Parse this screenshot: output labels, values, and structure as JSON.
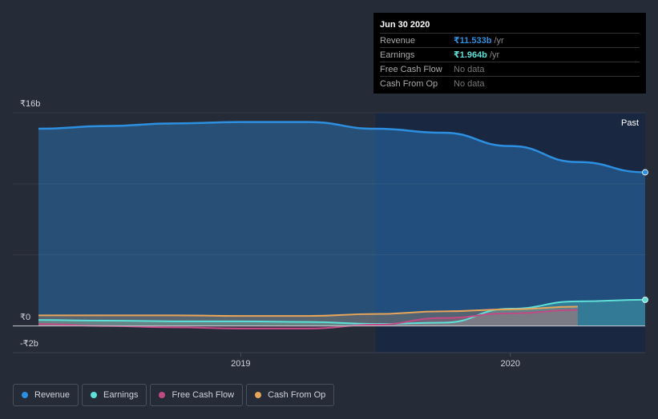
{
  "chart_data": {
    "type": "area",
    "title": "",
    "x_ticks": [
      {
        "label": "2019",
        "value": 2019.0
      },
      {
        "label": "2020",
        "value": 2020.0
      }
    ],
    "x_range": [
      2018.25,
      2020.5
    ],
    "y_ticks": [
      {
        "label": "₹16b",
        "value": 16
      },
      {
        "label": "₹0",
        "value": 0
      },
      {
        "label": "-₹2b",
        "value": -2
      }
    ],
    "ylim": [
      -2,
      16
    ],
    "forecast_label": "Past",
    "highlight_start": 2019.5,
    "series": [
      {
        "name": "Revenue",
        "color": "#2d8fe0",
        "x": [
          2018.25,
          2018.5,
          2018.75,
          2019.0,
          2019.25,
          2019.5,
          2019.75,
          2020.0,
          2020.25,
          2020.5
        ],
        "values": [
          14.8,
          15.0,
          15.2,
          15.3,
          15.3,
          14.8,
          14.5,
          13.5,
          12.3,
          11.533
        ]
      },
      {
        "name": "Earnings",
        "color": "#5ee0d8",
        "x": [
          2018.25,
          2018.5,
          2018.75,
          2019.0,
          2019.25,
          2019.5,
          2019.75,
          2020.0,
          2020.25,
          2020.5
        ],
        "values": [
          0.45,
          0.4,
          0.35,
          0.35,
          0.3,
          0.15,
          0.25,
          1.3,
          1.85,
          1.964
        ]
      },
      {
        "name": "Free Cash Flow",
        "color": "#c04a84",
        "x": [
          2018.25,
          2018.5,
          2018.75,
          2019.0,
          2019.25,
          2019.5,
          2019.75,
          2020.0,
          2020.25
        ],
        "values": [
          0.15,
          0.0,
          -0.1,
          -0.2,
          -0.2,
          0.1,
          0.6,
          0.95,
          1.2
        ]
      },
      {
        "name": "Cash From Op",
        "color": "#e6a55a",
        "x": [
          2018.25,
          2018.5,
          2018.75,
          2019.0,
          2019.25,
          2019.5,
          2019.75,
          2020.0,
          2020.25
        ],
        "values": [
          0.8,
          0.8,
          0.8,
          0.75,
          0.75,
          0.9,
          1.1,
          1.25,
          1.45
        ]
      }
    ]
  },
  "tooltip": {
    "date": "Jun 30 2020",
    "rows": [
      {
        "label": "Revenue",
        "value": "₹11.533b",
        "unit": " /yr",
        "color": "#2d8fe0"
      },
      {
        "label": "Earnings",
        "value": "₹1.964b",
        "unit": " /yr",
        "color": "#5ee0d8"
      },
      {
        "label": "Free Cash Flow",
        "value": "No data",
        "unit": "",
        "color": "#777777"
      },
      {
        "label": "Cash From Op",
        "value": "No data",
        "unit": "",
        "color": "#777777"
      }
    ]
  },
  "legend": [
    {
      "label": "Revenue",
      "color": "#2d8fe0"
    },
    {
      "label": "Earnings",
      "color": "#5ee0d8"
    },
    {
      "label": "Free Cash Flow",
      "color": "#c04a84"
    },
    {
      "label": "Cash From Op",
      "color": "#e6a55a"
    }
  ]
}
